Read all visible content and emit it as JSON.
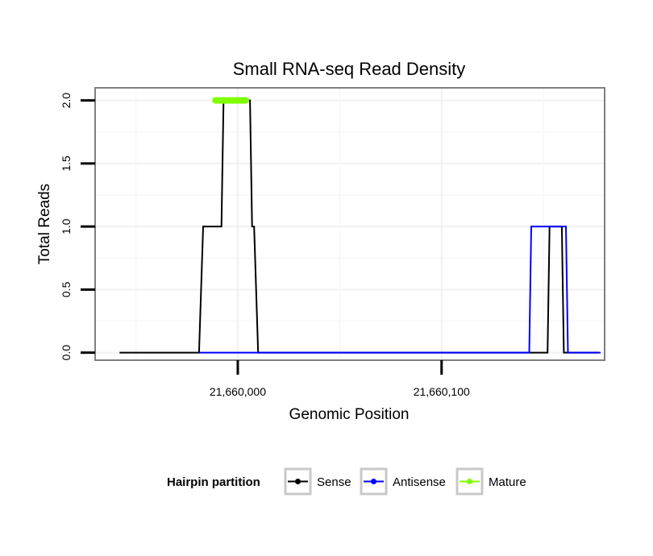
{
  "chart_data": {
    "type": "line",
    "title": "Small RNA-seq Read Density",
    "xlabel": "Genomic Position",
    "ylabel": "Total Reads",
    "xlim": [
      21659930,
      21660180
    ],
    "ylim": [
      -0.06,
      2.1
    ],
    "x_ticks": [
      21660000,
      21660100
    ],
    "x_tick_labels": [
      "21,660,000",
      "21,660,100"
    ],
    "y_ticks": [
      0,
      0.5,
      1,
      1.5,
      2
    ],
    "y_tick_labels": [
      "0.0",
      "0.5",
      "1.0",
      "1.5",
      "2.0"
    ],
    "grid": true,
    "legend": {
      "title": "Hairpin partition",
      "position": "bottom",
      "entries": [
        "Sense",
        "Antisense",
        "Mature"
      ]
    },
    "series": [
      {
        "name": "Sense",
        "color": "#000000",
        "x": [
          21659942,
          21659981,
          21659983,
          21659992,
          21659993,
          21660006,
          21660007,
          21660008,
          21660010,
          21660152,
          21660153,
          21660159,
          21660160,
          21660177
        ],
        "y": [
          0,
          0,
          1,
          1,
          2,
          2,
          1,
          1,
          0,
          0,
          1,
          1,
          0,
          0
        ]
      },
      {
        "name": "Antisense",
        "color": "#0000ff",
        "x": [
          21659981,
          21660010,
          21660143,
          21660144,
          21660161,
          21660162,
          21660178
        ],
        "y": [
          0,
          0,
          0,
          1,
          1,
          0,
          0
        ]
      },
      {
        "name": "Mature",
        "color": "#7fff00",
        "x": [
          21659989,
          21660004
        ],
        "y": [
          2,
          2
        ]
      }
    ]
  }
}
